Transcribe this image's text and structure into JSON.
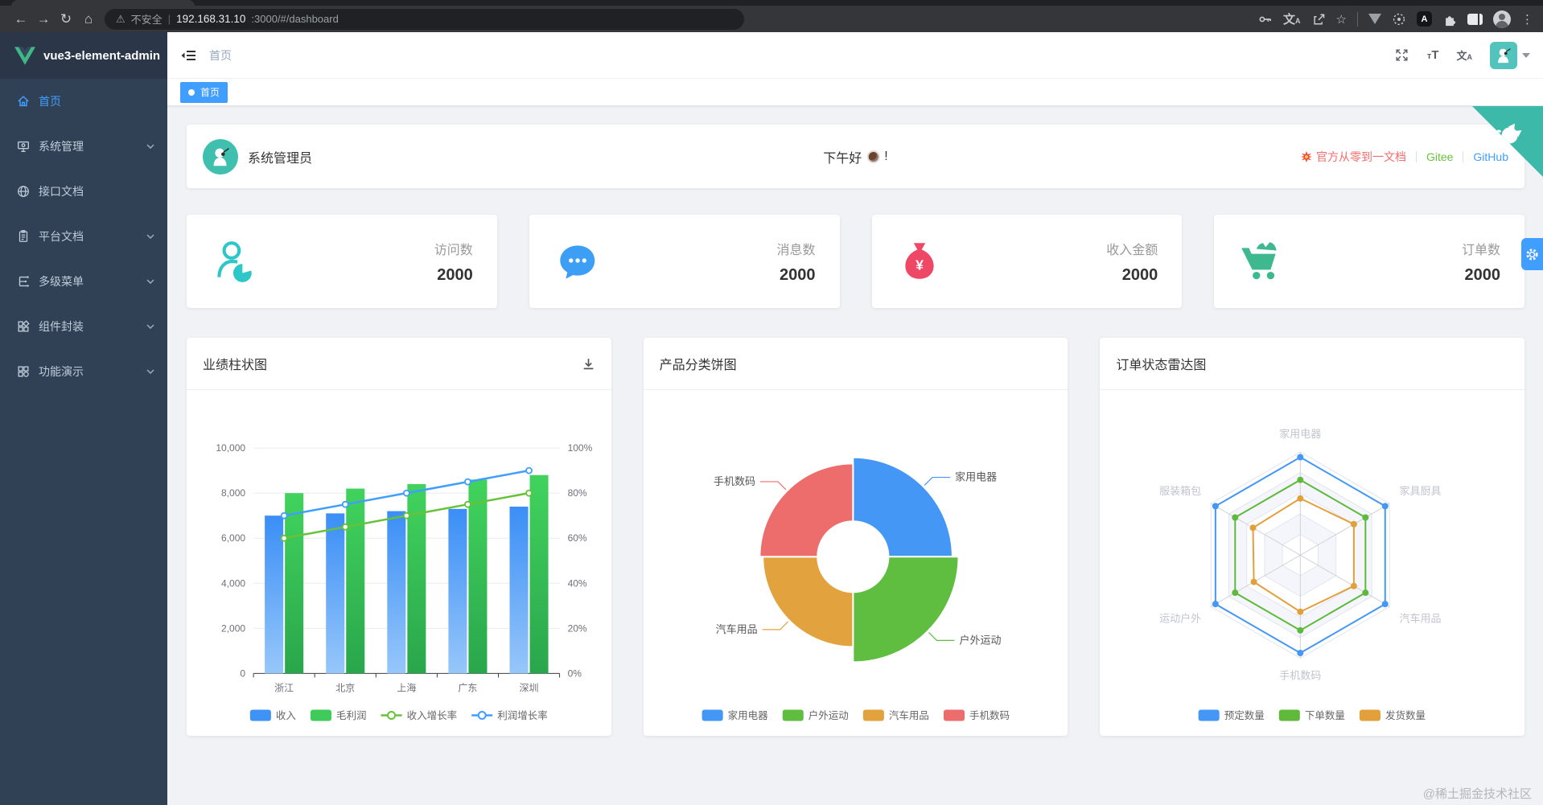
{
  "browser": {
    "security_label": "不安全",
    "host": "192.168.31.10",
    "path": ":3000/#/dashboard"
  },
  "sidebar": {
    "logo_text": "vue3-element-admin",
    "items": [
      {
        "label": "首页",
        "active": true,
        "has_arrow": false
      },
      {
        "label": "系统管理",
        "active": false,
        "has_arrow": true
      },
      {
        "label": "接口文档",
        "active": false,
        "has_arrow": false
      },
      {
        "label": "平台文档",
        "active": false,
        "has_arrow": true
      },
      {
        "label": "多级菜单",
        "active": false,
        "has_arrow": true
      },
      {
        "label": "组件封装",
        "active": false,
        "has_arrow": true
      },
      {
        "label": "功能演示",
        "active": false,
        "has_arrow": true
      }
    ]
  },
  "navbar": {
    "breadcrumb": "首页"
  },
  "tags": [
    {
      "label": "首页",
      "active": true
    }
  ],
  "greeting": {
    "username": "系统管理员",
    "message_prefix": "下午好",
    "message_suffix": "!",
    "doc_link": "官方从零到一文档",
    "gitee": "Gitee",
    "github": "GitHub"
  },
  "stats": [
    {
      "label": "访问数",
      "value": "2000",
      "icon": "user-chart-icon",
      "color": "#2ec7c9"
    },
    {
      "label": "消息数",
      "value": "2000",
      "icon": "message-icon",
      "color": "#3d9ef5"
    },
    {
      "label": "收入金额",
      "value": "2000",
      "icon": "money-bag-icon",
      "color": "#ef4766"
    },
    {
      "label": "订单数",
      "value": "2000",
      "icon": "cart-icon",
      "color": "#3eb88e"
    }
  ],
  "chart_data": [
    {
      "type": "bar",
      "title": "业绩柱状图",
      "categories": [
        "浙江",
        "北京",
        "上海",
        "广东",
        "深圳"
      ],
      "ymax_left": 10000,
      "ymax_right": 100,
      "yticks_left": [
        "0",
        "2,000",
        "4,000",
        "6,000",
        "8,000",
        "10,000"
      ],
      "yticks_right": [
        "0%",
        "20%",
        "40%",
        "60%",
        "80%",
        "100%"
      ],
      "series": [
        {
          "name": "收入",
          "type": "bar",
          "values": [
            7000,
            7100,
            7200,
            7300,
            7400
          ],
          "color_top": "#3a8ef6",
          "color_bottom": "#97c7fa",
          "legend_color": "#3f92f6"
        },
        {
          "name": "毛利润",
          "type": "bar",
          "values": [
            8000,
            8200,
            8400,
            8600,
            8800
          ],
          "color_top": "#41d35d",
          "color_bottom": "#2aa64c",
          "legend_color": "#3ecb59"
        },
        {
          "name": "收入增长率",
          "type": "line",
          "values": [
            60,
            65,
            70,
            75,
            80
          ],
          "color": "#67c23a"
        },
        {
          "name": "利润增长率",
          "type": "line",
          "values": [
            70,
            75,
            80,
            85,
            90
          ],
          "color": "#409eff"
        }
      ]
    },
    {
      "type": "pie",
      "title": "产品分类饼图",
      "names": [
        "家用电器",
        "户外运动",
        "汽车用品",
        "手机数码"
      ],
      "values": [
        30,
        32,
        27,
        28
      ],
      "colors": [
        "#4497f5",
        "#5fbe3f",
        "#e2a33e",
        "#ed6d6d"
      ]
    },
    {
      "type": "radar",
      "title": "订单状态雷达图",
      "indicators": [
        "家用电器",
        "家具厨具",
        "汽车用品",
        "手机数码",
        "运动户外",
        "服装箱包"
      ],
      "max": 100,
      "series": [
        {
          "name": "预定数量",
          "color": "#4497f5",
          "values": [
            95,
            95,
            95,
            95,
            95,
            95
          ]
        },
        {
          "name": "下单数量",
          "color": "#5fba3c",
          "values": [
            73,
            73,
            73,
            73,
            73,
            73
          ]
        },
        {
          "name": "发货数量",
          "color": "#e2a03c",
          "values": [
            55,
            60,
            60,
            55,
            52,
            53
          ]
        }
      ]
    }
  ],
  "watermark": "@稀土掘金技术社区"
}
